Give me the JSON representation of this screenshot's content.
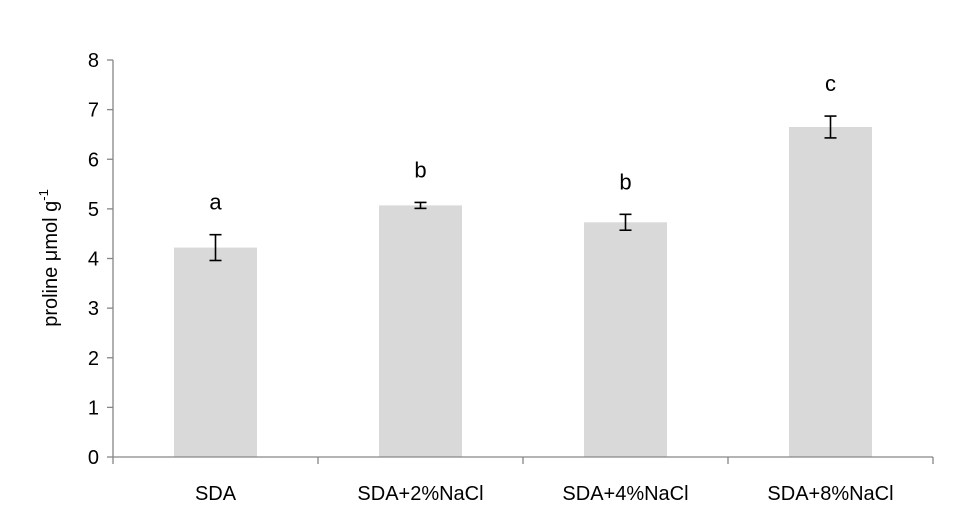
{
  "chart_data": {
    "type": "bar",
    "categories": [
      "SDA",
      "SDA+2%NaCl",
      "SDA+4%NaCl",
      "SDA+8%NaCl"
    ],
    "values": [
      4.22,
      5.07,
      4.73,
      6.65
    ],
    "errors": [
      0.26,
      0.06,
      0.16,
      0.22
    ],
    "significance": [
      "a",
      "b",
      "b",
      "c"
    ],
    "ylabel": {
      "text": "proline μmol g",
      "superscript": "-1"
    },
    "ylim": [
      0,
      8
    ],
    "yticks": [
      "0",
      "1",
      "2",
      "3",
      "4",
      "5",
      "6",
      "7",
      "8"
    ],
    "grid": false,
    "legend": "none",
    "bar_color": "#d9d9d9",
    "axis_color": "#868686",
    "error_color": "#000000"
  }
}
